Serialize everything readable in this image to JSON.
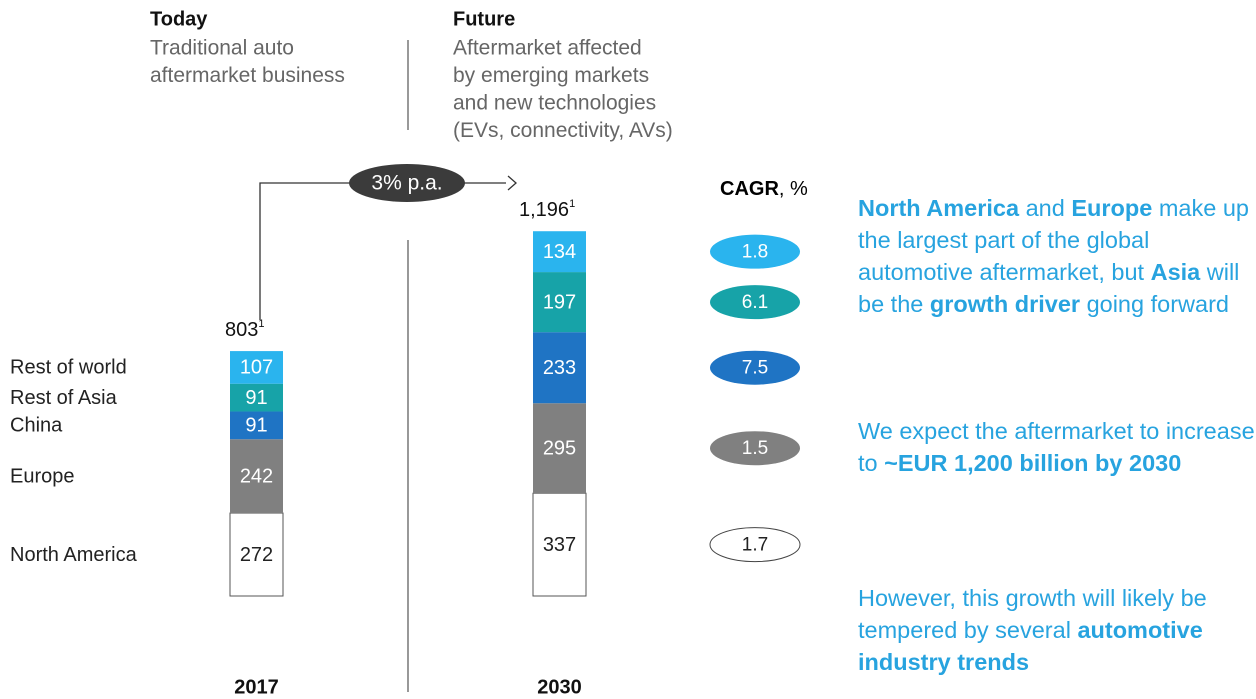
{
  "chart_data": {
    "type": "stacked-bar",
    "headers": [
      {
        "title": "Today",
        "subtitle": [
          "Traditional auto",
          "aftermarket business"
        ]
      },
      {
        "title": "Future",
        "subtitle": [
          "Aftermarket affected",
          "by emerging markets",
          "and new technologies",
          "(EVs, connectivity, AVs)"
        ]
      }
    ],
    "categories": [
      "2017",
      "2030"
    ],
    "series": [
      {
        "name": "North America",
        "color": "#ffffff",
        "values": [
          272,
          337
        ],
        "cagr": 1.7
      },
      {
        "name": "Europe",
        "color": "#808080",
        "values": [
          242,
          295
        ],
        "cagr": 1.5
      },
      {
        "name": "China",
        "color": "#1f74c4",
        "values": [
          91,
          233
        ],
        "cagr": 7.5
      },
      {
        "name": "Rest of Asia",
        "color": "#17a3a8",
        "values": [
          91,
          197
        ],
        "cagr": 6.1
      },
      {
        "name": "Rest of world",
        "color": "#2ab4ee",
        "values": [
          107,
          134
        ],
        "cagr": 1.8
      }
    ],
    "totals": {
      "values": [
        803,
        1196
      ],
      "value_labels": [
        "803",
        "1,196"
      ],
      "note_mark": "1"
    },
    "growth_label": "3% p.a.",
    "cagr_label": "CAGR",
    "cagr_unit": ", %",
    "notes": [
      [
        {
          "text": "North America",
          "bold": true
        },
        {
          "text": " and "
        },
        {
          "text": "Europe",
          "bold": true
        },
        {
          "text": " make up the largest part of the global automotive aftermarket, but "
        },
        {
          "text": "Asia",
          "bold": true
        },
        {
          "text": " will be the "
        },
        {
          "text": "growth driver",
          "bold": true
        },
        {
          "text": " going forward"
        }
      ],
      [
        {
          "text": "We expect the aftermarket to increase to "
        },
        {
          "text": "~EUR 1,200 billion by 2030",
          "bold": true
        }
      ],
      [
        {
          "text": "However, this growth will likely be tempered by several "
        },
        {
          "text": "automotive industry trends",
          "bold": true
        }
      ]
    ]
  }
}
